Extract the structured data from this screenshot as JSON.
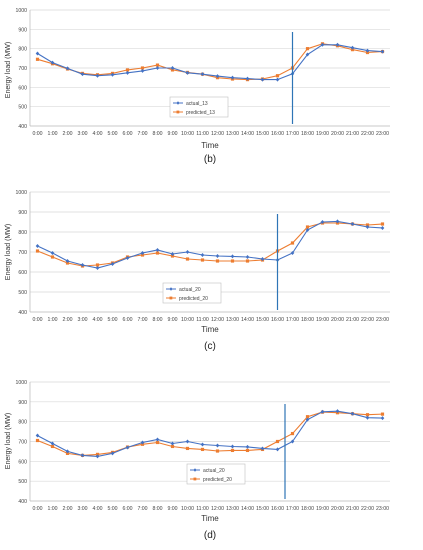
{
  "panel_labels": [
    "(b)",
    "(c)",
    "(d)"
  ],
  "chart_data": [
    {
      "type": "line",
      "title": "",
      "xlabel": "Time",
      "ylabel": "Energy load  (MW)",
      "ylim": [
        400,
        1000
      ],
      "yticks": [
        400,
        500,
        600,
        700,
        800,
        900,
        1000
      ],
      "grid": true,
      "legend": "center-left",
      "categories": [
        "0:00",
        "1:00",
        "2:00",
        "3:00",
        "4:00",
        "5:00",
        "6:00",
        "7:00",
        "8:00",
        "9:00",
        "10:00",
        "11:00",
        "12:00",
        "13:00",
        "14:00",
        "15:00",
        "16:00",
        "17:00",
        "18:00",
        "19:00",
        "20:00",
        "21:00",
        "22:00",
        "23:00"
      ],
      "marker_hour": 17,
      "series": [
        {
          "name": "actual_13",
          "color": "#4472c4",
          "marker": "diamond",
          "values": [
            775,
            728,
            698,
            668,
            660,
            665,
            675,
            685,
            700,
            700,
            675,
            668,
            658,
            650,
            645,
            640,
            640,
            670,
            770,
            820,
            820,
            805,
            790,
            785
          ]
        },
        {
          "name": "predicted_13",
          "color": "#ed7d31",
          "marker": "square",
          "values": [
            745,
            722,
            695,
            672,
            665,
            672,
            690,
            700,
            715,
            690,
            677,
            668,
            650,
            643,
            640,
            643,
            660,
            700,
            800,
            825,
            815,
            795,
            780,
            785
          ]
        }
      ]
    },
    {
      "type": "line",
      "title": "",
      "xlabel": "Time",
      "ylabel": "Energy load  (MW)",
      "ylim": [
        400,
        1000
      ],
      "yticks": [
        400,
        500,
        600,
        700,
        800,
        900,
        1000
      ],
      "grid": true,
      "legend": "bottom-left",
      "categories": [
        "0:00",
        "1:00",
        "2:00",
        "3:00",
        "4:00",
        "5:00",
        "6:00",
        "7:00",
        "8:00",
        "9:00",
        "10:00",
        "11:00",
        "12:00",
        "13:00",
        "14:00",
        "15:00",
        "16:00",
        "17:00",
        "18:00",
        "19:00",
        "20:00",
        "21:00",
        "22:00",
        "23:00"
      ],
      "marker_hour": 16,
      "series": [
        {
          "name": "actual_20",
          "color": "#4472c4",
          "marker": "diamond",
          "values": [
            730,
            695,
            655,
            635,
            620,
            640,
            670,
            695,
            710,
            690,
            700,
            685,
            680,
            678,
            675,
            665,
            660,
            695,
            810,
            850,
            853,
            840,
            825,
            820
          ]
        },
        {
          "name": "predicted_20",
          "color": "#ed7d31",
          "marker": "square",
          "values": [
            705,
            675,
            645,
            630,
            635,
            645,
            675,
            685,
            695,
            680,
            665,
            660,
            655,
            655,
            655,
            660,
            705,
            745,
            825,
            845,
            845,
            840,
            835,
            840
          ]
        }
      ]
    },
    {
      "type": "line",
      "title": "",
      "xlabel": "Time",
      "ylabel": "Energy load  (MW)",
      "ylim": [
        400,
        1000
      ],
      "yticks": [
        400,
        500,
        600,
        700,
        800,
        900,
        1000
      ],
      "grid": true,
      "legend": "bottom-right",
      "categories": [
        "0:00",
        "1:00",
        "2:00",
        "3:00",
        "4:00",
        "5:00",
        "6:00",
        "7:00",
        "8:00",
        "9:00",
        "10:00",
        "11:00",
        "12:00",
        "13:00",
        "14:00",
        "15:00",
        "16:00",
        "17:00",
        "18:00",
        "19:00",
        "20:00",
        "21:00",
        "22:00",
        "23:00"
      ],
      "marker_hour": 16.5,
      "series": [
        {
          "name": "actual_20",
          "color": "#4472c4",
          "marker": "diamond",
          "values": [
            730,
            690,
            650,
            630,
            625,
            640,
            670,
            695,
            710,
            690,
            700,
            685,
            680,
            675,
            673,
            665,
            660,
            700,
            810,
            850,
            853,
            840,
            820,
            818
          ]
        },
        {
          "name": "predicted_20",
          "color": "#ed7d31",
          "marker": "square",
          "values": [
            705,
            675,
            640,
            630,
            635,
            645,
            672,
            686,
            695,
            675,
            665,
            660,
            652,
            655,
            655,
            660,
            700,
            740,
            825,
            848,
            845,
            840,
            835,
            838
          ]
        }
      ]
    }
  ]
}
